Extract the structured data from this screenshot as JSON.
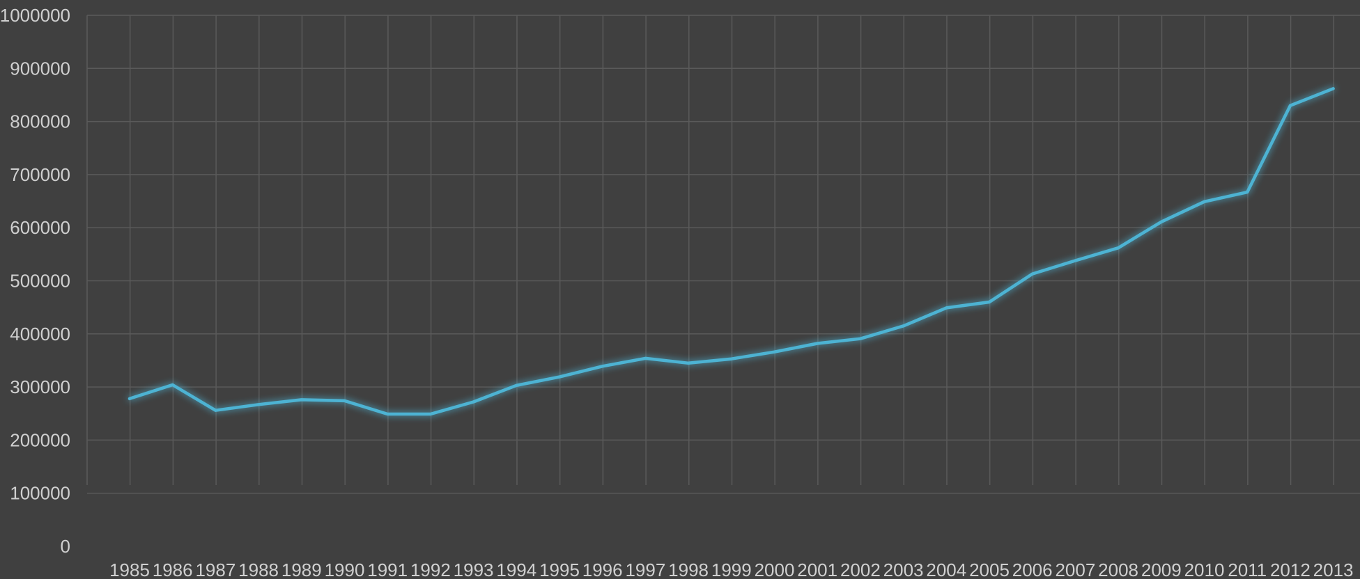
{
  "chart_data": {
    "type": "line",
    "categories": [
      "1985",
      "1986",
      "1987",
      "1988",
      "1989",
      "1990",
      "1991",
      "1992",
      "1993",
      "1994",
      "1995",
      "1996",
      "1997",
      "1998",
      "1999",
      "2000",
      "2001",
      "2002",
      "2003",
      "2004",
      "2005",
      "2006",
      "2007",
      "2008",
      "2009",
      "2010",
      "2011",
      "2012",
      "2013"
    ],
    "series": [
      {
        "values": [
          278000,
          304000,
          256000,
          267000,
          276000,
          274000,
          249000,
          249000,
          272000,
          303000,
          319000,
          339000,
          354000,
          345000,
          353000,
          366000,
          382000,
          391000,
          415000,
          449000,
          460000,
          513000,
          538000,
          562000,
          611000,
          649000,
          667000,
          830000,
          862000
        ],
        "color": "#4eb3d3"
      }
    ],
    "title": "",
    "xlabel": "",
    "ylabel": "",
    "ylim": [
      0,
      1000000
    ],
    "yticks": [
      "0",
      "100000",
      "200000",
      "300000",
      "400000",
      "500000",
      "600000",
      "700000",
      "800000",
      "900000",
      "1000000"
    ],
    "grid": true,
    "legend": "none",
    "background_color": "#404040",
    "grid_color": "#5a5a5a",
    "label_color": "#d0d0d0"
  }
}
